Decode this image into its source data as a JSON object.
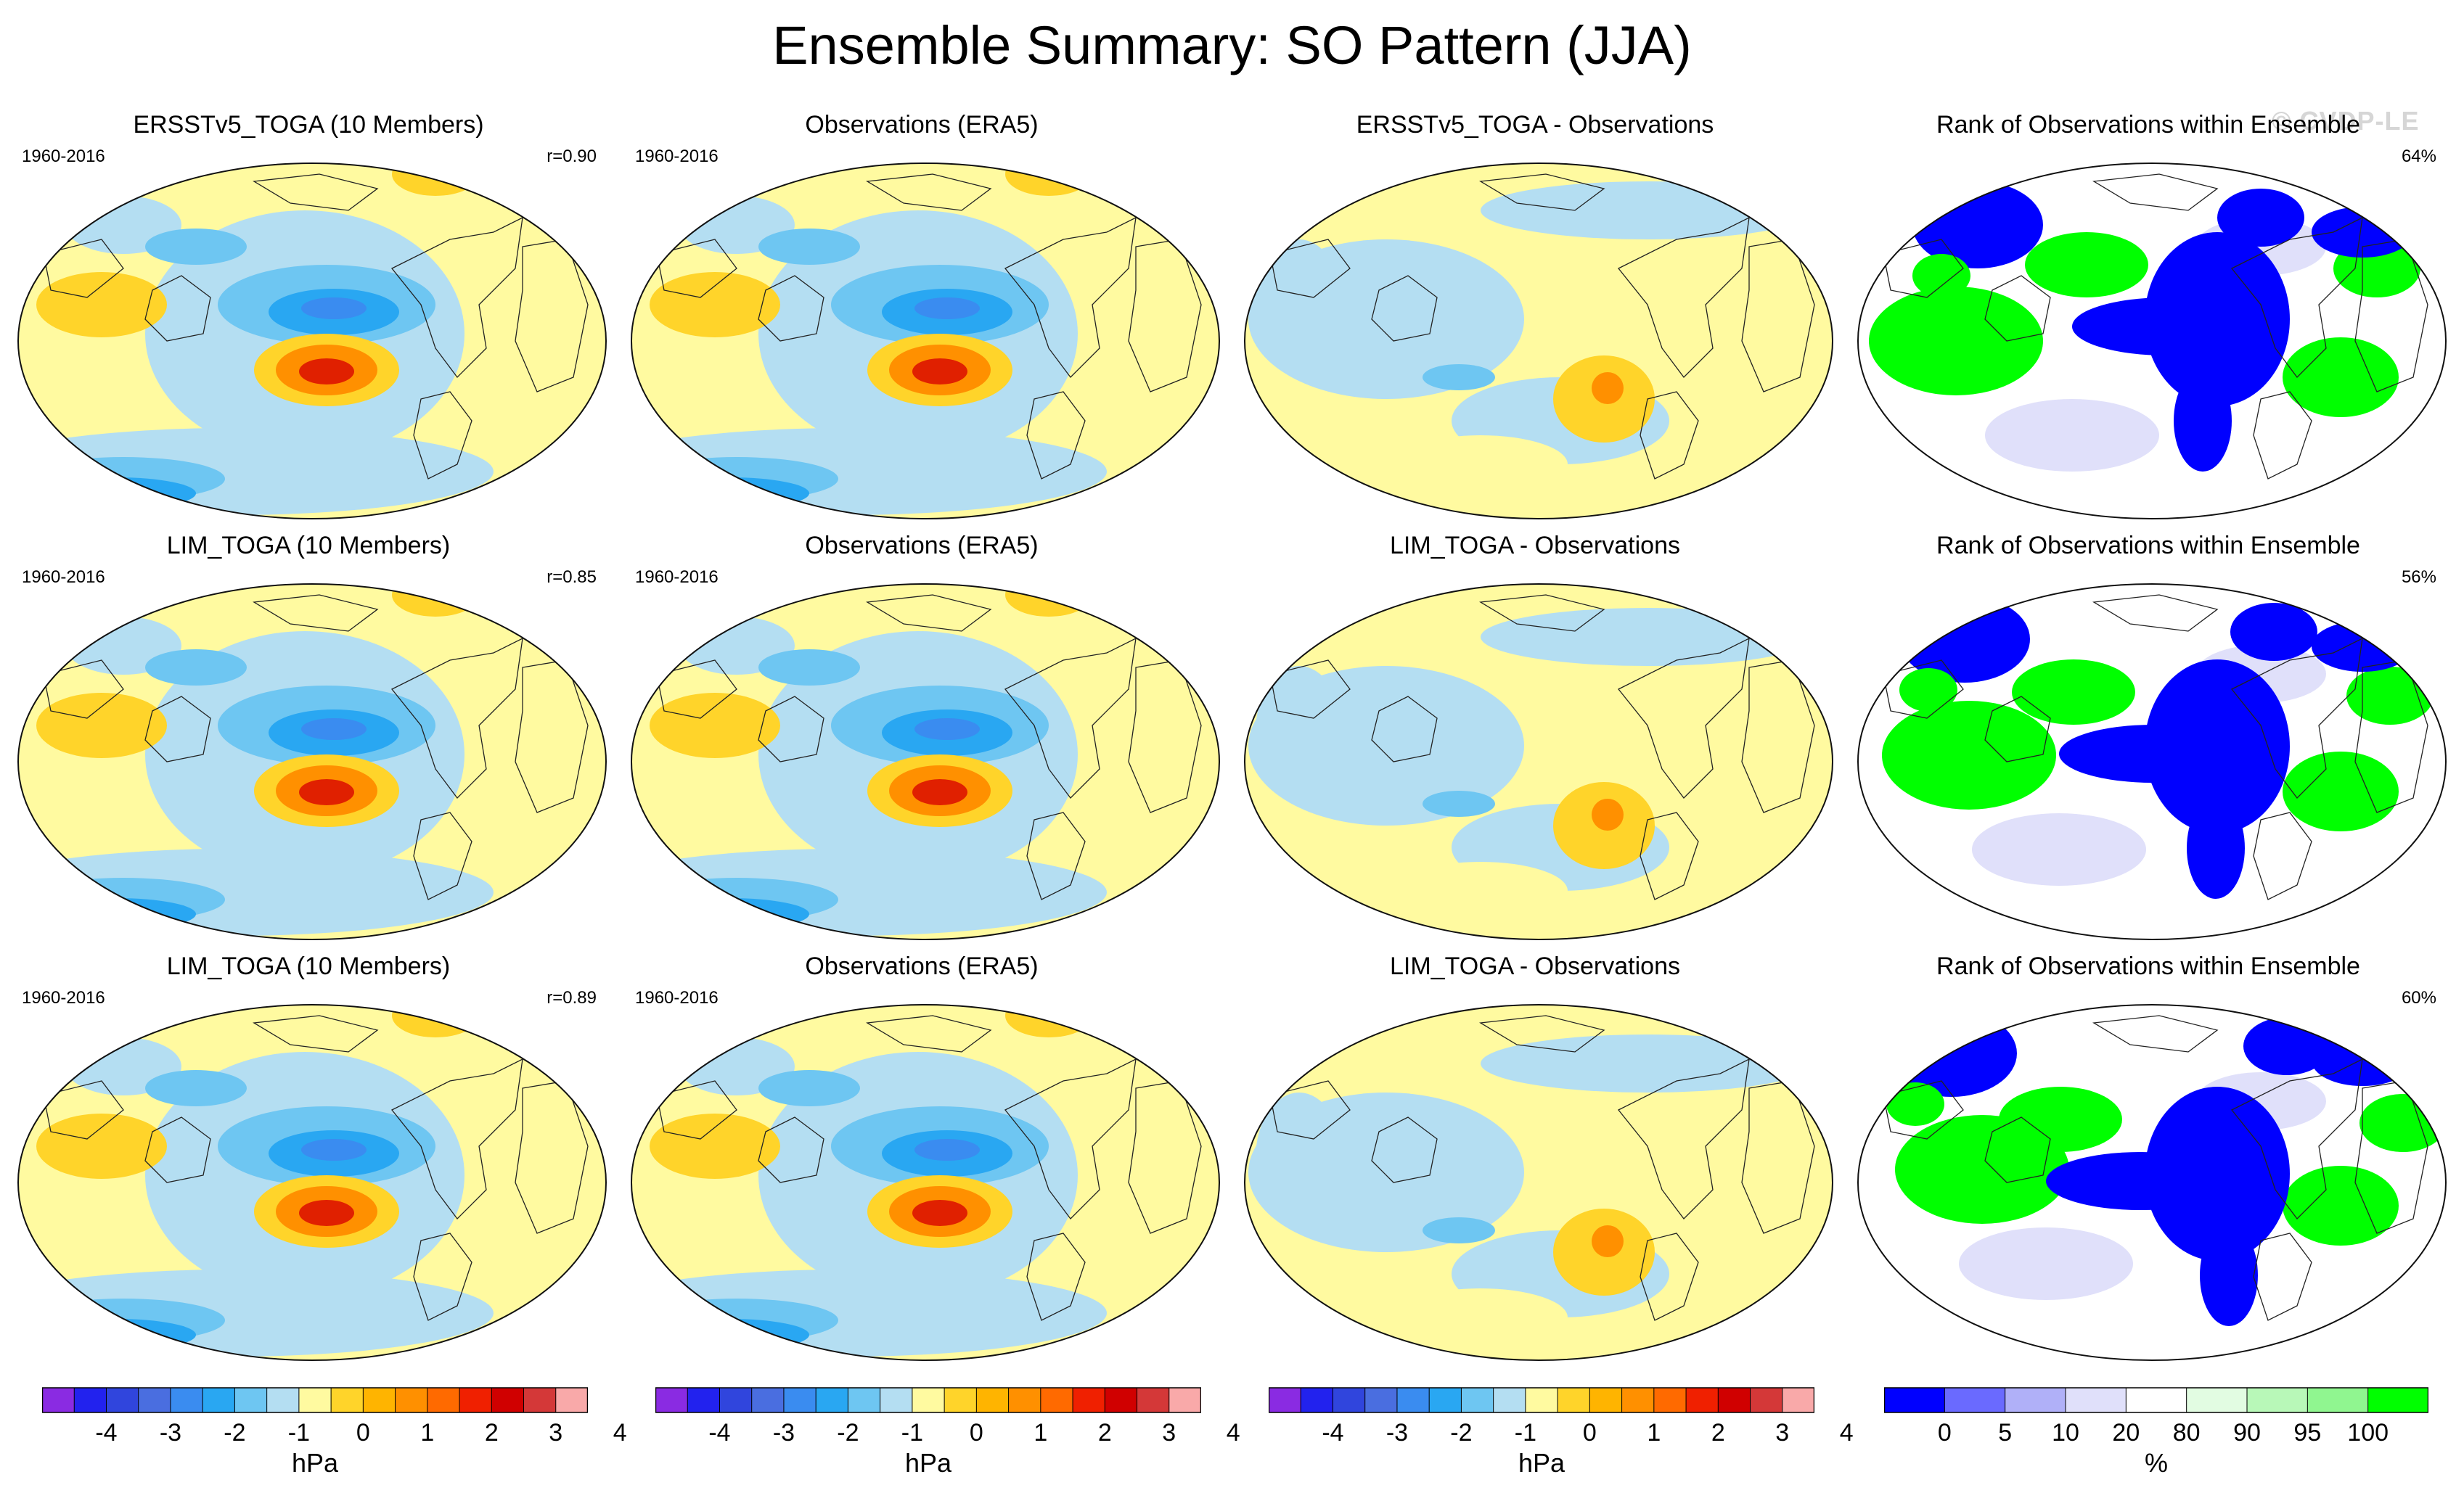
{
  "title": "Ensemble Summary: SO Pattern (JJA)",
  "watermark": "© CVDP-LE",
  "rows": [
    {
      "panels": [
        {
          "title": "ERSSTv5_TOGA (10 Members)",
          "years": "1960-2016",
          "stat": "r=0.90",
          "kind": "pattern"
        },
        {
          "title": "Observations (ERA5)",
          "years": "1960-2016",
          "stat": "",
          "kind": "obs"
        },
        {
          "title": "ERSSTv5_TOGA - Observations",
          "years": "",
          "stat": "",
          "kind": "diff"
        },
        {
          "title": "Rank of Observations within Ensemble",
          "years": "",
          "stat": "64%",
          "kind": "rank"
        }
      ]
    },
    {
      "panels": [
        {
          "title": "LIM_TOGA (10 Members)",
          "years": "1960-2016",
          "stat": "r=0.85",
          "kind": "pattern"
        },
        {
          "title": "Observations (ERA5)",
          "years": "1960-2016",
          "stat": "",
          "kind": "obs"
        },
        {
          "title": "LIM_TOGA - Observations",
          "years": "",
          "stat": "",
          "kind": "diff"
        },
        {
          "title": "Rank of Observations within Ensemble",
          "years": "",
          "stat": "56%",
          "kind": "rank"
        }
      ]
    },
    {
      "panels": [
        {
          "title": "LIM_TOGA (10 Members)",
          "years": "1960-2016",
          "stat": "r=0.89",
          "kind": "pattern"
        },
        {
          "title": "Observations (ERA5)",
          "years": "1960-2016",
          "stat": "",
          "kind": "obs"
        },
        {
          "title": "LIM_TOGA - Observations",
          "years": "",
          "stat": "",
          "kind": "diff"
        },
        {
          "title": "Rank of Observations within Ensemble",
          "years": "",
          "stat": "60%",
          "kind": "rank"
        }
      ]
    }
  ],
  "colorbars": {
    "hpa": {
      "unit": "hPa",
      "tick_labels": [
        "-4",
        "-3",
        "-2",
        "-1",
        "0",
        "1",
        "2",
        "3",
        "4"
      ],
      "colors": [
        "#8a2be2",
        "#2222ee",
        "#3045dd",
        "#4a6ee0",
        "#3a8cf0",
        "#29a7f2",
        "#6ec6f2",
        "#b4def2",
        "#fffaa0",
        "#ffd42a",
        "#ffb400",
        "#ff9000",
        "#ff6a00",
        "#f02000",
        "#d00000",
        "#d43838",
        "#f9a9a9"
      ]
    },
    "rank": {
      "unit": "%",
      "tick_labels": [
        "0",
        "5",
        "10",
        "20",
        "80",
        "90",
        "95",
        "100"
      ],
      "colors": [
        "#0000ff",
        "#6a6aff",
        "#b0b0f8",
        "#e0e0fa",
        "#ffffff",
        "#e2fce2",
        "#b8f8b8",
        "#90f690",
        "#00ff00"
      ]
    }
  },
  "colors": {
    "pos_light": "#fffaa0",
    "pos_mid": "#ffd42a",
    "pos_strong": "#ff9000",
    "pos_core": "#e02000",
    "neg_light": "#b4def2",
    "neg_mid": "#6ec6f2",
    "neg_strong": "#29a7f2",
    "neg_core": "#3a8cf0",
    "rank_low": "#0000ff",
    "rank_high": "#00ff00",
    "rank_pale": "#e0e0fa"
  }
}
